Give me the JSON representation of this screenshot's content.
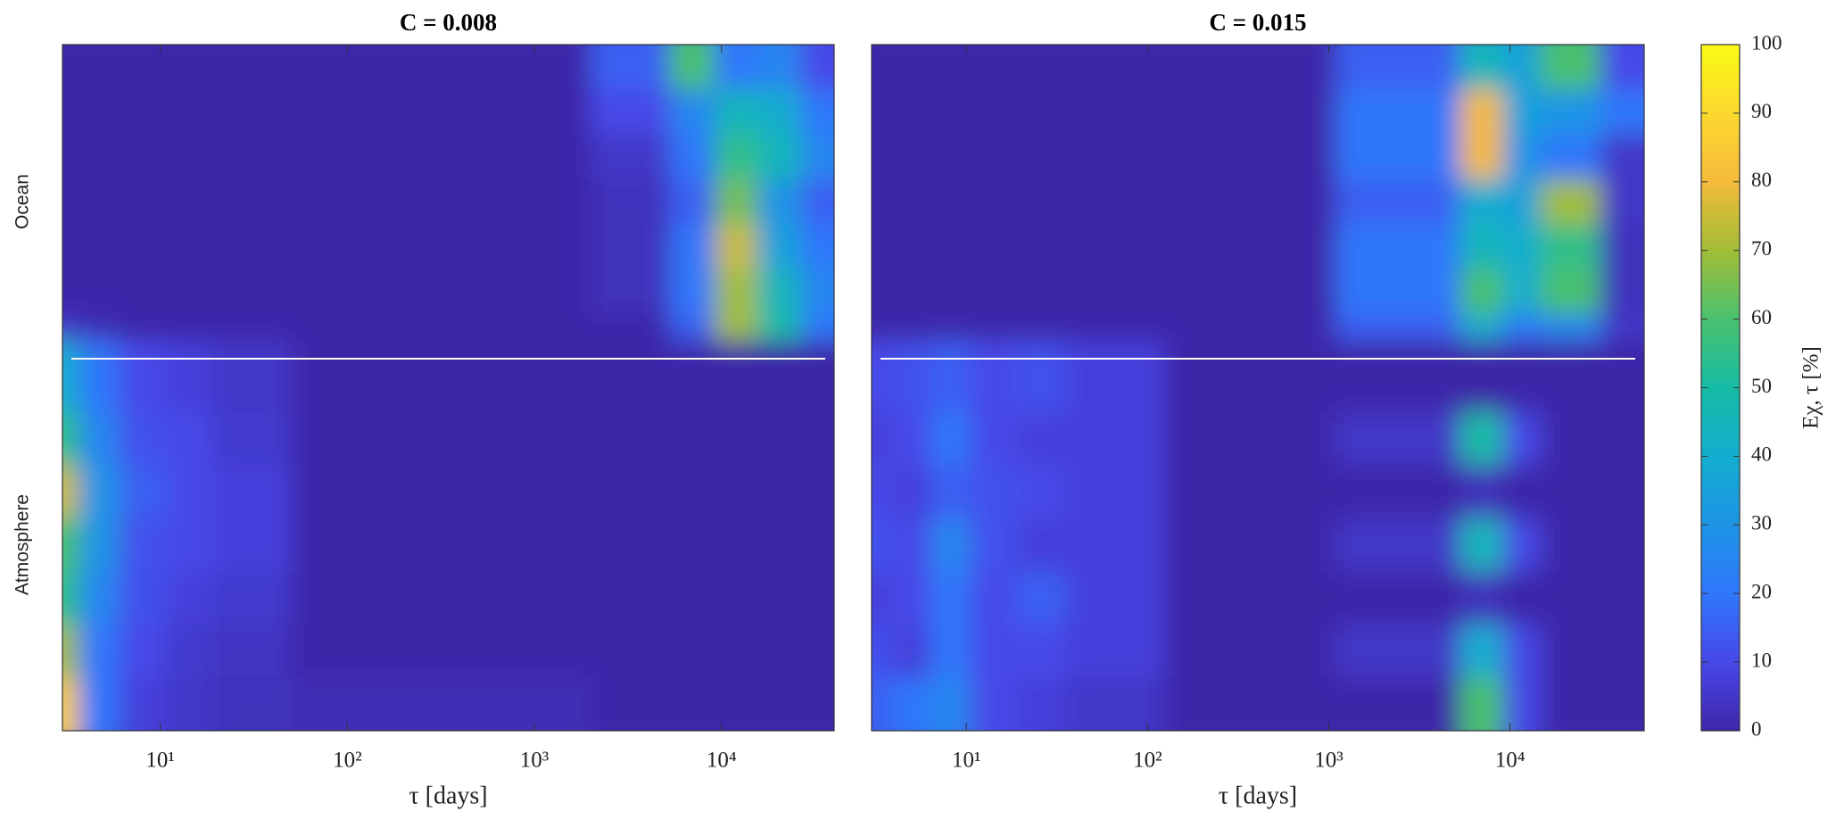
{
  "chart_data": [
    {
      "type": "contour",
      "title": "C = 0.008",
      "xlabel": "τ [days]",
      "xscale": "log",
      "xlim": [
        3,
        40000
      ],
      "xticks": [
        {
          "value": 10,
          "label": "10¹"
        },
        {
          "value": 100,
          "label": "10²"
        },
        {
          "value": 1000,
          "label": "10³"
        },
        {
          "value": 10000,
          "label": "10⁴"
        }
      ],
      "x": [
        3,
        4.5,
        8,
        14,
        25,
        100,
        1000,
        4000,
        7000,
        12000,
        20000,
        35000
      ],
      "values": [
        [
          [
            0,
            0,
            0,
            0,
            0,
            0,
            0,
            15,
            60,
            20,
            25,
            10
          ],
          [
            0,
            0,
            0,
            0,
            0,
            0,
            0,
            10,
            25,
            45,
            40,
            20
          ],
          [
            0,
            0,
            0,
            0,
            0,
            0,
            0,
            5,
            20,
            55,
            45,
            25
          ],
          [
            0,
            0,
            0,
            0,
            0,
            0,
            0,
            3,
            15,
            65,
            30,
            15
          ],
          [
            0,
            0,
            0,
            0,
            0,
            0,
            0,
            3,
            20,
            75,
            35,
            20
          ],
          [
            0,
            0,
            0,
            0,
            0,
            0,
            0,
            3,
            20,
            70,
            45,
            25
          ],
          [
            5,
            2,
            0,
            0,
            0,
            0,
            0,
            0,
            15,
            70,
            50,
            20
          ]
        ],
        [
          [
            40,
            20,
            10,
            8,
            5,
            0,
            0,
            0,
            0,
            0,
            0,
            0
          ],
          [
            55,
            25,
            12,
            10,
            6,
            0,
            0,
            0,
            0,
            0,
            0,
            0
          ],
          [
            75,
            30,
            15,
            10,
            8,
            0,
            0,
            0,
            0,
            0,
            0,
            0
          ],
          [
            60,
            30,
            12,
            10,
            8,
            0,
            0,
            0,
            0,
            0,
            0,
            0
          ],
          [
            55,
            25,
            12,
            8,
            6,
            0,
            0,
            0,
            0,
            0,
            0,
            0
          ],
          [
            70,
            20,
            10,
            6,
            4,
            0,
            0,
            0,
            0,
            0,
            0,
            0
          ],
          [
            85,
            20,
            8,
            5,
            3,
            2,
            2,
            0,
            0,
            0,
            0,
            0
          ]
        ]
      ]
    },
    {
      "type": "contour",
      "title": "C = 0.015",
      "xlabel": "τ [days]",
      "xscale": "log",
      "xlim": [
        3,
        55000
      ],
      "xticks": [
        {
          "value": 10,
          "label": "10¹"
        },
        {
          "value": 100,
          "label": "10²"
        },
        {
          "value": 1000,
          "label": "10³"
        },
        {
          "value": 10000,
          "label": "10⁴"
        }
      ],
      "x": [
        3,
        5,
        8,
        14,
        25,
        50,
        300,
        4000,
        7000,
        12000,
        18000,
        55000
      ],
      "values": [
        [
          [
            0,
            0,
            0,
            0,
            0,
            0,
            0,
            15,
            45,
            35,
            60,
            10
          ],
          [
            0,
            0,
            0,
            0,
            0,
            0,
            0,
            20,
            80,
            35,
            30,
            20
          ],
          [
            0,
            0,
            0,
            0,
            0,
            0,
            0,
            20,
            80,
            30,
            20,
            5
          ],
          [
            0,
            0,
            0,
            0,
            0,
            0,
            0,
            15,
            40,
            35,
            70,
            5
          ],
          [
            0,
            0,
            0,
            0,
            0,
            0,
            0,
            20,
            45,
            40,
            55,
            3
          ],
          [
            0,
            0,
            0,
            0,
            0,
            0,
            0,
            20,
            60,
            40,
            60,
            3
          ],
          [
            0,
            0,
            0,
            0,
            0,
            0,
            0,
            15,
            40,
            20,
            25,
            5
          ]
        ],
        [
          [
            10,
            12,
            15,
            10,
            12,
            8,
            0,
            0,
            0,
            0,
            0,
            0
          ],
          [
            8,
            10,
            20,
            10,
            8,
            8,
            0,
            5,
            50,
            10,
            0,
            0
          ],
          [
            10,
            8,
            15,
            12,
            10,
            8,
            0,
            0,
            3,
            0,
            0,
            0
          ],
          [
            12,
            10,
            25,
            12,
            8,
            8,
            0,
            5,
            45,
            10,
            0,
            0
          ],
          [
            8,
            10,
            20,
            10,
            15,
            8,
            0,
            0,
            3,
            0,
            0,
            0
          ],
          [
            12,
            8,
            20,
            10,
            10,
            8,
            0,
            5,
            40,
            10,
            0,
            0
          ],
          [
            15,
            20,
            25,
            10,
            8,
            5,
            0,
            0,
            60,
            10,
            0,
            0
          ]
        ]
      ]
    }
  ],
  "row_labels": [
    "Ocean",
    "Atmosphere"
  ],
  "colorbar": {
    "label": "Eχ, τ [%]",
    "clim": [
      0,
      100
    ],
    "ticks": [
      0,
      10,
      20,
      30,
      40,
      50,
      60,
      70,
      80,
      90,
      100
    ],
    "colormap": [
      "#3e26a8",
      "#4748e8",
      "#2f77fb",
      "#1d94e5",
      "#13adcf",
      "#15bca4",
      "#4ac16e",
      "#a2bd37",
      "#f4ba3a",
      "#fcd92e",
      "#f9fb15"
    ]
  }
}
